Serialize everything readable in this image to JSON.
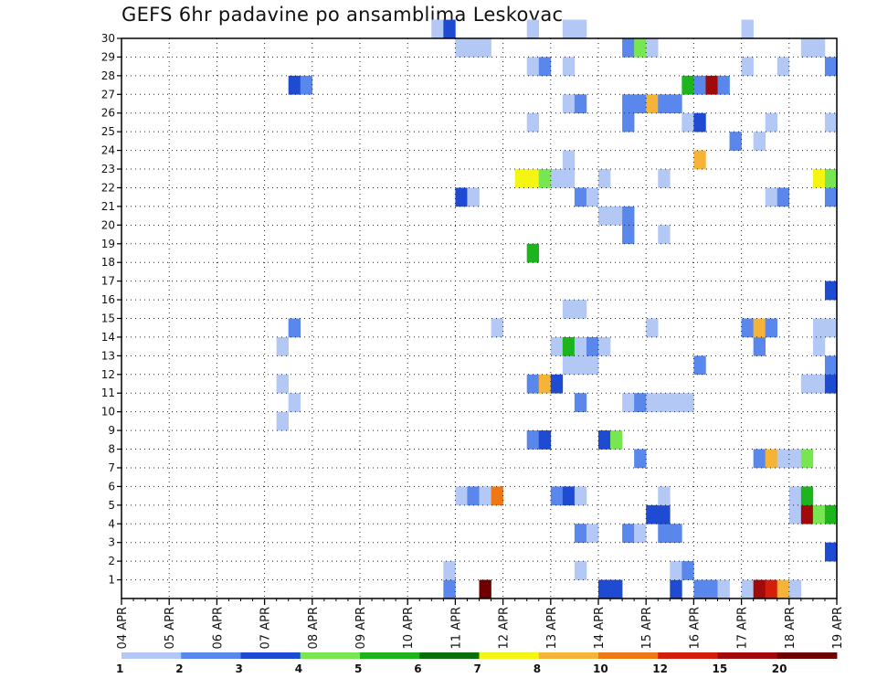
{
  "chart_data": {
    "type": "heatmap",
    "title": "GEFS 6hr padavine po ansamblima Leskovac",
    "xlabel": "",
    "ylabel": "",
    "x_tick_labels": [
      "04 APR",
      "05 APR",
      "06 APR",
      "07 APR",
      "08 APR",
      "09 APR",
      "10 APR",
      "11 APR",
      "12 APR",
      "13 APR",
      "14 APR",
      "15 APR",
      "16 APR",
      "17 APR",
      "18 APR",
      "19 APR"
    ],
    "x_range": [
      0,
      60
    ],
    "x_unit": "6-hour steps from 04 APR 00Z",
    "y_tick_labels": [
      "1",
      "2",
      "3",
      "4",
      "5",
      "6",
      "7",
      "8",
      "9",
      "10",
      "11",
      "12",
      "13",
      "14",
      "15",
      "16",
      "17",
      "18",
      "19",
      "20",
      "21",
      "22",
      "23",
      "24",
      "25",
      "26",
      "27",
      "28",
      "29",
      "30"
    ],
    "y_range": [
      0,
      30
    ],
    "grid": true,
    "colorbar": {
      "levels": [
        "1",
        "2",
        "3",
        "4",
        "5",
        "6",
        "7",
        "8",
        "10",
        "12",
        "15",
        "20"
      ],
      "colors": [
        "#b4c8f5",
        "#5a87eb",
        "#1e4bd2",
        "#78e650",
        "#1eb41e",
        "#0a6e0a",
        "#f5f514",
        "#f5b437",
        "#f07814",
        "#d21e0a",
        "#a00a0a",
        "#6e0000"
      ]
    },
    "cells": [
      {
        "step": 27,
        "member": 0,
        "c": 1
      },
      {
        "step": 30,
        "member": 0,
        "c": 11
      },
      {
        "step": 40,
        "member": 0,
        "c": 2
      },
      {
        "step": 41,
        "member": 0,
        "c": 2
      },
      {
        "step": 46,
        "member": 0,
        "c": 2
      },
      {
        "step": 48,
        "member": 0,
        "c": 1
      },
      {
        "step": 49,
        "member": 0,
        "c": 1
      },
      {
        "step": 50,
        "member": 0,
        "c": 0
      },
      {
        "step": 52,
        "member": 0,
        "c": 0
      },
      {
        "step": 53,
        "member": 0,
        "c": 10
      },
      {
        "step": 54,
        "member": 0,
        "c": 9
      },
      {
        "step": 55,
        "member": 0,
        "c": 7
      },
      {
        "step": 56,
        "member": 0,
        "c": 0
      },
      {
        "step": 27,
        "member": 1,
        "c": 0
      },
      {
        "step": 38,
        "member": 1,
        "c": 0
      },
      {
        "step": 46,
        "member": 1,
        "c": 0
      },
      {
        "step": 47,
        "member": 1,
        "c": 1
      },
      {
        "step": 59,
        "member": 2,
        "c": 2
      },
      {
        "step": 38,
        "member": 3,
        "c": 1
      },
      {
        "step": 39,
        "member": 3,
        "c": 0
      },
      {
        "step": 42,
        "member": 3,
        "c": 1
      },
      {
        "step": 43,
        "member": 3,
        "c": 0
      },
      {
        "step": 45,
        "member": 3,
        "c": 1
      },
      {
        "step": 46,
        "member": 3,
        "c": 1
      },
      {
        "step": 44,
        "member": 4,
        "c": 2
      },
      {
        "step": 45,
        "member": 4,
        "c": 2
      },
      {
        "step": 56,
        "member": 4,
        "c": 0
      },
      {
        "step": 57,
        "member": 4,
        "c": 10
      },
      {
        "step": 58,
        "member": 4,
        "c": 3
      },
      {
        "step": 59,
        "member": 4,
        "c": 4
      },
      {
        "step": 28,
        "member": 5,
        "c": 0
      },
      {
        "step": 29,
        "member": 5,
        "c": 1
      },
      {
        "step": 30,
        "member": 5,
        "c": 0
      },
      {
        "step": 31,
        "member": 5,
        "c": 8
      },
      {
        "step": 36,
        "member": 5,
        "c": 1
      },
      {
        "step": 37,
        "member": 5,
        "c": 2
      },
      {
        "step": 38,
        "member": 5,
        "c": 0
      },
      {
        "step": 45,
        "member": 5,
        "c": 0
      },
      {
        "step": 56,
        "member": 5,
        "c": 0
      },
      {
        "step": 57,
        "member": 5,
        "c": 4
      },
      {
        "step": 43,
        "member": 7,
        "c": 1
      },
      {
        "step": 53,
        "member": 7,
        "c": 1
      },
      {
        "step": 54,
        "member": 7,
        "c": 7
      },
      {
        "step": 55,
        "member": 7,
        "c": 0
      },
      {
        "step": 56,
        "member": 7,
        "c": 0
      },
      {
        "step": 57,
        "member": 7,
        "c": 3
      },
      {
        "step": 34,
        "member": 8,
        "c": 1
      },
      {
        "step": 35,
        "member": 8,
        "c": 2
      },
      {
        "step": 40,
        "member": 8,
        "c": 2
      },
      {
        "step": 41,
        "member": 8,
        "c": 3
      },
      {
        "step": 13,
        "member": 9,
        "c": 0
      },
      {
        "step": 14,
        "member": 10,
        "c": 0
      },
      {
        "step": 38,
        "member": 10,
        "c": 1
      },
      {
        "step": 42,
        "member": 10,
        "c": 0
      },
      {
        "step": 43,
        "member": 10,
        "c": 1
      },
      {
        "step": 44,
        "member": 10,
        "c": 0
      },
      {
        "step": 45,
        "member": 10,
        "c": 0
      },
      {
        "step": 46,
        "member": 10,
        "c": 0
      },
      {
        "step": 47,
        "member": 10,
        "c": 0
      },
      {
        "step": 13,
        "member": 11,
        "c": 0
      },
      {
        "step": 34,
        "member": 11,
        "c": 1
      },
      {
        "step": 35,
        "member": 11,
        "c": 7
      },
      {
        "step": 36,
        "member": 11,
        "c": 2
      },
      {
        "step": 57,
        "member": 11,
        "c": 0
      },
      {
        "step": 58,
        "member": 11,
        "c": 0
      },
      {
        "step": 59,
        "member": 11,
        "c": 2
      },
      {
        "step": 37,
        "member": 12,
        "c": 0
      },
      {
        "step": 38,
        "member": 12,
        "c": 0
      },
      {
        "step": 39,
        "member": 12,
        "c": 0
      },
      {
        "step": 48,
        "member": 12,
        "c": 1
      },
      {
        "step": 59,
        "member": 12,
        "c": 1
      },
      {
        "step": 13,
        "member": 13,
        "c": 0
      },
      {
        "step": 36,
        "member": 13,
        "c": 0
      },
      {
        "step": 37,
        "member": 13,
        "c": 4
      },
      {
        "step": 38,
        "member": 13,
        "c": 0
      },
      {
        "step": 39,
        "member": 13,
        "c": 1
      },
      {
        "step": 40,
        "member": 13,
        "c": 0
      },
      {
        "step": 53,
        "member": 13,
        "c": 1
      },
      {
        "step": 58,
        "member": 13,
        "c": 0
      },
      {
        "step": 14,
        "member": 14,
        "c": 1
      },
      {
        "step": 31,
        "member": 14,
        "c": 0
      },
      {
        "step": 44,
        "member": 14,
        "c": 0
      },
      {
        "step": 52,
        "member": 14,
        "c": 1
      },
      {
        "step": 53,
        "member": 14,
        "c": 7
      },
      {
        "step": 54,
        "member": 14,
        "c": 1
      },
      {
        "step": 58,
        "member": 14,
        "c": 0
      },
      {
        "step": 59,
        "member": 14,
        "c": 0
      },
      {
        "step": 37,
        "member": 15,
        "c": 0
      },
      {
        "step": 38,
        "member": 15,
        "c": 0
      },
      {
        "step": 59,
        "member": 16,
        "c": 2
      },
      {
        "step": 34,
        "member": 18,
        "c": 4
      },
      {
        "step": 42,
        "member": 19,
        "c": 1
      },
      {
        "step": 45,
        "member": 19,
        "c": 0
      },
      {
        "step": 40,
        "member": 20,
        "c": 0
      },
      {
        "step": 41,
        "member": 20,
        "c": 0
      },
      {
        "step": 42,
        "member": 20,
        "c": 1
      },
      {
        "step": 28,
        "member": 21,
        "c": 2
      },
      {
        "step": 29,
        "member": 21,
        "c": 0
      },
      {
        "step": 38,
        "member": 21,
        "c": 1
      },
      {
        "step": 39,
        "member": 21,
        "c": 0
      },
      {
        "step": 54,
        "member": 21,
        "c": 0
      },
      {
        "step": 55,
        "member": 21,
        "c": 1
      },
      {
        "step": 59,
        "member": 21,
        "c": 1
      },
      {
        "step": 33,
        "member": 22,
        "c": 6
      },
      {
        "step": 34,
        "member": 22,
        "c": 6
      },
      {
        "step": 35,
        "member": 22,
        "c": 3
      },
      {
        "step": 36,
        "member": 22,
        "c": 0
      },
      {
        "step": 37,
        "member": 22,
        "c": 0
      },
      {
        "step": 40,
        "member": 22,
        "c": 0
      },
      {
        "step": 45,
        "member": 22,
        "c": 0
      },
      {
        "step": 58,
        "member": 22,
        "c": 6
      },
      {
        "step": 59,
        "member": 22,
        "c": 3
      },
      {
        "step": 37,
        "member": 23,
        "c": 0
      },
      {
        "step": 48,
        "member": 23,
        "c": 7
      },
      {
        "step": 51,
        "member": 24,
        "c": 1
      },
      {
        "step": 53,
        "member": 24,
        "c": 0
      },
      {
        "step": 34,
        "member": 25,
        "c": 0
      },
      {
        "step": 42,
        "member": 25,
        "c": 1
      },
      {
        "step": 47,
        "member": 25,
        "c": 0
      },
      {
        "step": 48,
        "member": 25,
        "c": 2
      },
      {
        "step": 54,
        "member": 25,
        "c": 0
      },
      {
        "step": 59,
        "member": 25,
        "c": 0
      },
      {
        "step": 37,
        "member": 26,
        "c": 0
      },
      {
        "step": 38,
        "member": 26,
        "c": 1
      },
      {
        "step": 42,
        "member": 26,
        "c": 1
      },
      {
        "step": 43,
        "member": 26,
        "c": 1
      },
      {
        "step": 44,
        "member": 26,
        "c": 7
      },
      {
        "step": 45,
        "member": 26,
        "c": 1
      },
      {
        "step": 46,
        "member": 26,
        "c": 1
      },
      {
        "step": 14,
        "member": 27,
        "c": 2
      },
      {
        "step": 15,
        "member": 27,
        "c": 1
      },
      {
        "step": 47,
        "member": 27,
        "c": 4
      },
      {
        "step": 48,
        "member": 27,
        "c": 1
      },
      {
        "step": 49,
        "member": 27,
        "c": 10
      },
      {
        "step": 50,
        "member": 27,
        "c": 1
      },
      {
        "step": 34,
        "member": 28,
        "c": 0
      },
      {
        "step": 35,
        "member": 28,
        "c": 1
      },
      {
        "step": 37,
        "member": 28,
        "c": 0
      },
      {
        "step": 52,
        "member": 28,
        "c": 0
      },
      {
        "step": 55,
        "member": 28,
        "c": 0
      },
      {
        "step": 59,
        "member": 28,
        "c": 1
      },
      {
        "step": 28,
        "member": 29,
        "c": 0
      },
      {
        "step": 29,
        "member": 29,
        "c": 0
      },
      {
        "step": 30,
        "member": 29,
        "c": 0
      },
      {
        "step": 42,
        "member": 29,
        "c": 1
      },
      {
        "step": 43,
        "member": 29,
        "c": 3
      },
      {
        "step": 44,
        "member": 29,
        "c": 0
      },
      {
        "step": 57,
        "member": 29,
        "c": 0
      },
      {
        "step": 58,
        "member": 29,
        "c": 0
      },
      {
        "step": 26,
        "member": 30,
        "c": 0
      },
      {
        "step": 27,
        "member": 30,
        "c": 2
      },
      {
        "step": 34,
        "member": 30,
        "c": 0
      },
      {
        "step": 37,
        "member": 30,
        "c": 0
      },
      {
        "step": 38,
        "member": 30,
        "c": 0
      },
      {
        "step": 52,
        "member": 30,
        "c": 0
      }
    ]
  }
}
